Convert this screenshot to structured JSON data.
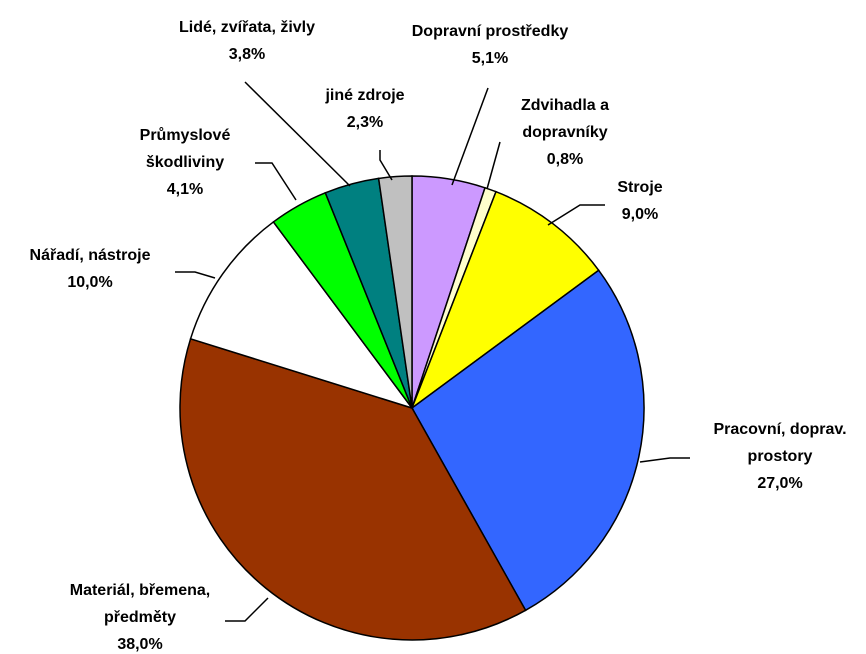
{
  "chart_data": {
    "type": "pie",
    "categories": [
      [
        "Dopravní prostředky"
      ],
      [
        "Zdvihadla a",
        "dopravníky"
      ],
      [
        "Stroje"
      ],
      [
        "Pracovní, doprav.",
        "prostory"
      ],
      [
        "Materiál, břemena,",
        "předměty"
      ],
      [
        "Nářadí, nástroje"
      ],
      [
        "Průmyslové",
        "škodliviny"
      ],
      [
        "Lidé, zvířata, živly"
      ],
      [
        "jiné zdroje"
      ]
    ],
    "values": [
      5.1,
      0.8,
      9.0,
      27.0,
      38.0,
      10.0,
      4.1,
      3.8,
      2.3
    ],
    "value_labels": [
      "5,1%",
      "0,8%",
      "9,0%",
      "27,0%",
      "38,0%",
      "10,0%",
      "4,1%",
      "3,8%",
      "2,3%"
    ],
    "colors": [
      "#cc99ff",
      "#ffffcc",
      "#ffff00",
      "#3366ff",
      "#993300",
      "#ffffff",
      "#00ff00",
      "#008080",
      "#c0c0c0"
    ]
  }
}
